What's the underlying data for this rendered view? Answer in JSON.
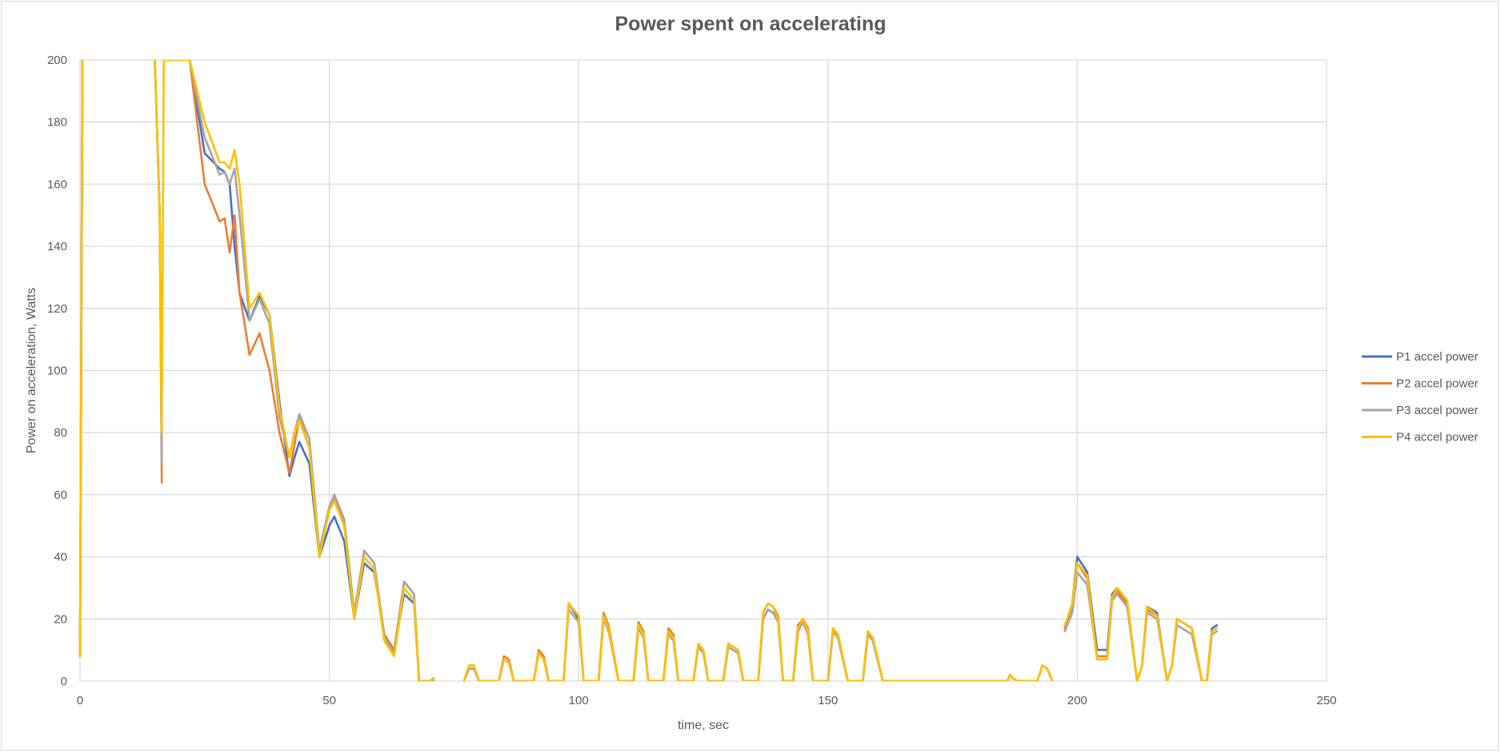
{
  "chart_data": {
    "type": "line",
    "title": "Power spent on accelerating",
    "xlabel": "time, sec",
    "ylabel": "Power on acceleration, Watts",
    "xlim": [
      0,
      250
    ],
    "ylim": [
      0,
      200
    ],
    "xticks": [
      0,
      50,
      100,
      150,
      200,
      250
    ],
    "yticks": [
      0,
      20,
      40,
      60,
      80,
      100,
      120,
      140,
      160,
      180,
      200
    ],
    "grid": true,
    "legend_position": "right",
    "series": [
      {
        "name": "P1 accel power",
        "color": "#4472C4",
        "x": [
          0,
          0.5,
          1,
          15,
          16,
          16.4,
          16.8,
          17,
          22,
          25,
          28,
          29,
          30,
          31,
          32,
          34,
          36,
          38,
          40,
          42,
          43,
          44,
          46,
          48,
          50,
          51,
          53,
          55,
          57,
          59,
          61,
          63,
          65,
          67,
          68,
          70,
          71,
          72,
          77,
          78,
          79,
          80,
          84,
          85,
          86,
          87,
          91,
          92,
          93,
          94,
          97,
          98,
          100,
          101,
          104,
          105,
          106,
          108,
          111,
          112,
          113,
          114,
          117,
          118,
          119,
          120,
          123,
          124,
          125,
          126,
          129,
          130,
          132,
          133,
          136,
          137,
          138,
          139,
          140,
          141,
          143,
          144,
          145,
          146,
          147,
          148,
          150,
          151,
          152,
          154,
          157,
          158,
          159,
          161,
          186,
          186.5,
          187,
          188,
          192,
          193,
          194,
          195,
          197,
          197.5,
          198,
          199,
          200,
          202,
          204,
          206,
          207,
          208,
          210,
          212,
          213,
          214,
          216,
          218,
          219,
          220,
          221,
          223,
          225,
          226,
          227,
          228
        ],
        "y": [
          8,
          200,
          null,
          200,
          150,
          70,
          null,
          null,
          200,
          170,
          165,
          164,
          160,
          140,
          125,
          116,
          124,
          118,
          90,
          66,
          72,
          77,
          70,
          40,
          50,
          53,
          45,
          20,
          38,
          35,
          15,
          10,
          28,
          25,
          0,
          0,
          0,
          null,
          0,
          4,
          4,
          0,
          0,
          7,
          6,
          0,
          0,
          9,
          7,
          0,
          0,
          25,
          20,
          0,
          0,
          21,
          17,
          0,
          0,
          18,
          15,
          0,
          0,
          16,
          14,
          0,
          0,
          11,
          10,
          0,
          0,
          11,
          9,
          0,
          0,
          20,
          23,
          22,
          20,
          0,
          0,
          16,
          19,
          15,
          0,
          0,
          0,
          16,
          14,
          0,
          0,
          15,
          13,
          0,
          0,
          2,
          1,
          0,
          0,
          5,
          4,
          0,
          null,
          18,
          20,
          25,
          40,
          35,
          10,
          10,
          28,
          30,
          26,
          0,
          5,
          24,
          22,
          0,
          5,
          20,
          19,
          17,
          0,
          0,
          17,
          18
        ]
      },
      {
        "name": "P2 accel power",
        "color": "#ED7D31",
        "x": [
          0,
          0.5,
          1,
          15,
          16,
          16.4,
          16.8,
          17,
          22,
          25,
          28,
          29,
          30,
          31,
          32,
          34,
          36,
          38,
          40,
          42,
          43,
          44,
          46,
          48,
          50,
          51,
          53,
          55,
          57,
          59,
          61,
          63,
          65,
          67,
          68,
          70,
          71,
          72,
          77,
          78,
          79,
          80,
          84,
          85,
          86,
          87,
          91,
          92,
          93,
          94,
          97,
          98,
          100,
          101,
          104,
          105,
          106,
          108,
          111,
          112,
          113,
          114,
          117,
          118,
          119,
          120,
          123,
          124,
          125,
          126,
          129,
          130,
          132,
          133,
          136,
          137,
          138,
          139,
          140,
          141,
          143,
          144,
          145,
          146,
          147,
          148,
          150,
          151,
          152,
          154,
          157,
          158,
          159,
          161,
          186,
          186.5,
          187,
          188,
          192,
          193,
          194,
          195,
          197,
          197.5,
          198,
          199,
          200,
          202,
          204,
          206,
          207,
          208,
          210,
          212,
          213,
          214,
          216,
          218,
          219,
          220,
          221,
          223,
          225,
          226,
          227,
          228
        ],
        "y": [
          8,
          200,
          null,
          200,
          150,
          64,
          null,
          null,
          200,
          160,
          148,
          149,
          138,
          150,
          125,
          105,
          112,
          100,
          80,
          67,
          76,
          85,
          75,
          42,
          56,
          59,
          50,
          22,
          42,
          38,
          15,
          10,
          32,
          28,
          0,
          0,
          0,
          null,
          0,
          5,
          5,
          0,
          0,
          8,
          7,
          0,
          0,
          10,
          8,
          0,
          0,
          25,
          21,
          0,
          0,
          22,
          18,
          0,
          0,
          19,
          16,
          0,
          0,
          17,
          15,
          0,
          0,
          12,
          10,
          0,
          0,
          12,
          10,
          0,
          0,
          22,
          25,
          24,
          21,
          0,
          0,
          18,
          20,
          17,
          0,
          0,
          0,
          17,
          15,
          0,
          0,
          16,
          14,
          0,
          0,
          2,
          1,
          0,
          0,
          5,
          4,
          0,
          null,
          17,
          19,
          24,
          38,
          33,
          8,
          8,
          27,
          29,
          25,
          0,
          5,
          23,
          21,
          0,
          5,
          20,
          19,
          17,
          0,
          0,
          16,
          17
        ]
      },
      {
        "name": "P3 accel power",
        "color": "#A5A5A5",
        "x": [
          0,
          0.5,
          1,
          15,
          16,
          16.4,
          16.8,
          17,
          22,
          25,
          28,
          29,
          30,
          31,
          32,
          34,
          36,
          38,
          40,
          42,
          43,
          44,
          46,
          48,
          50,
          51,
          53,
          55,
          57,
          59,
          61,
          63,
          65,
          67,
          68,
          70,
          71,
          72,
          77,
          78,
          79,
          80,
          84,
          85,
          86,
          87,
          91,
          92,
          93,
          94,
          97,
          98,
          100,
          101,
          104,
          105,
          106,
          108,
          111,
          112,
          113,
          114,
          117,
          118,
          119,
          120,
          123,
          124,
          125,
          126,
          129,
          130,
          132,
          133,
          136,
          137,
          138,
          139,
          140,
          141,
          143,
          144,
          145,
          146,
          147,
          148,
          150,
          151,
          152,
          154,
          157,
          158,
          159,
          161,
          186,
          186.5,
          187,
          188,
          192,
          193,
          194,
          195,
          197,
          197.5,
          198,
          199,
          200,
          202,
          204,
          206,
          207,
          208,
          210,
          212,
          213,
          214,
          216,
          218,
          219,
          220,
          221,
          223,
          225,
          226,
          227,
          228
        ],
        "y": [
          8,
          200,
          null,
          200,
          150,
          70,
          null,
          null,
          200,
          175,
          163,
          164,
          160,
          165,
          150,
          116,
          123,
          115,
          85,
          72,
          80,
          86,
          78,
          42,
          56,
          60,
          52,
          22,
          42,
          38,
          14,
          9,
          32,
          28,
          0,
          0,
          0,
          null,
          0,
          4,
          4,
          0,
          0,
          7,
          6,
          0,
          0,
          9,
          7,
          0,
          0,
          23,
          19,
          0,
          0,
          20,
          16,
          0,
          0,
          17,
          14,
          0,
          0,
          15,
          13,
          0,
          0,
          11,
          9,
          0,
          0,
          11,
          9,
          0,
          0,
          20,
          23,
          22,
          19,
          0,
          0,
          16,
          19,
          15,
          0,
          0,
          0,
          16,
          14,
          0,
          0,
          15,
          13,
          0,
          0,
          2,
          1,
          0,
          0,
          5,
          4,
          0,
          null,
          16,
          18,
          22,
          35,
          31,
          7,
          7,
          26,
          28,
          24,
          0,
          5,
          22,
          20,
          0,
          5,
          18,
          17,
          15,
          0,
          0,
          15,
          16
        ]
      },
      {
        "name": "P4 accel power",
        "color": "#FFC000",
        "x": [
          0,
          0.5,
          1,
          15,
          16,
          16.4,
          16.8,
          17,
          22,
          25,
          28,
          29,
          30,
          31,
          32,
          34,
          36,
          38,
          40,
          42,
          43,
          44,
          46,
          48,
          50,
          51,
          53,
          55,
          57,
          59,
          61,
          63,
          65,
          67,
          68,
          70,
          71,
          72,
          77,
          78,
          79,
          80,
          84,
          85,
          86,
          87,
          91,
          92,
          93,
          94,
          97,
          98,
          100,
          101,
          104,
          105,
          106,
          108,
          111,
          112,
          113,
          114,
          117,
          118,
          119,
          120,
          123,
          124,
          125,
          126,
          129,
          130,
          132,
          133,
          136,
          137,
          138,
          139,
          140,
          141,
          143,
          144,
          145,
          146,
          147,
          148,
          150,
          151,
          152,
          154,
          157,
          158,
          159,
          161,
          186,
          186.5,
          187,
          188,
          192,
          193,
          194,
          195,
          197,
          197.5,
          198,
          199,
          200,
          202,
          204,
          206,
          207,
          208,
          210,
          212,
          213,
          214,
          216,
          218,
          219,
          220,
          221,
          223,
          225,
          226,
          227,
          228
        ],
        "y": [
          8,
          200,
          null,
          200,
          150,
          80,
          200,
          200,
          200,
          180,
          167,
          167,
          165,
          171,
          160,
          120,
          125,
          118,
          88,
          72,
          80,
          84,
          75,
          40,
          55,
          58,
          50,
          20,
          40,
          36,
          13,
          8,
          30,
          26,
          0,
          0,
          1,
          null,
          0,
          5,
          5,
          0,
          0,
          7,
          6,
          0,
          0,
          9,
          7,
          0,
          0,
          25,
          21,
          0,
          0,
          21,
          17,
          0,
          0,
          18,
          15,
          0,
          0,
          16,
          14,
          0,
          0,
          12,
          10,
          0,
          0,
          12,
          10,
          0,
          0,
          22,
          25,
          24,
          20,
          0,
          0,
          17,
          20,
          16,
          0,
          0,
          0,
          17,
          15,
          0,
          0,
          16,
          14,
          0,
          0,
          2,
          1,
          0,
          0,
          5,
          4,
          0,
          null,
          18,
          20,
          25,
          38,
          34,
          7,
          7,
          27,
          30,
          26,
          0,
          5,
          24,
          21,
          0,
          5,
          20,
          19,
          17,
          0,
          0,
          16,
          17
        ]
      }
    ]
  }
}
